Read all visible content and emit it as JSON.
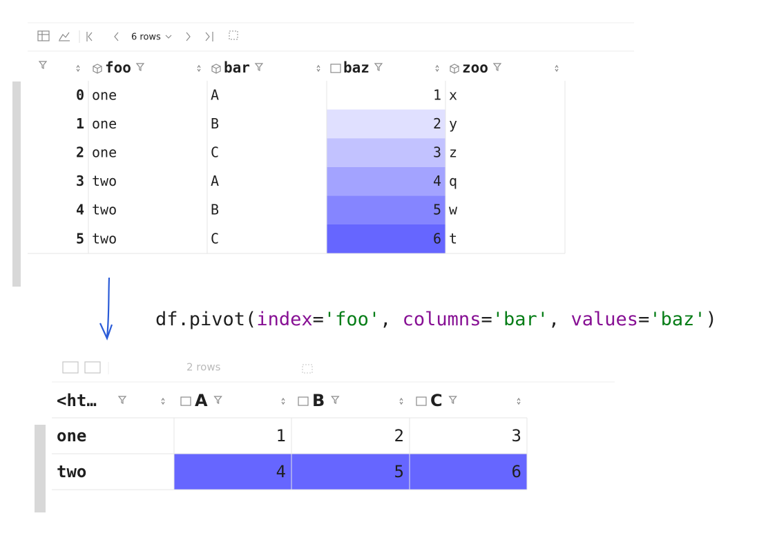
{
  "top_table": {
    "toolbar": {
      "rows_label": "6 rows"
    },
    "columns": [
      "foo",
      "bar",
      "baz",
      "zoo"
    ],
    "rows": [
      {
        "index": 0,
        "cells": [
          "one",
          "A",
          1,
          "x"
        ]
      },
      {
        "index": 1,
        "cells": [
          "one",
          "B",
          2,
          "y"
        ]
      },
      {
        "index": 2,
        "cells": [
          "one",
          "C",
          3,
          "z"
        ]
      },
      {
        "index": 3,
        "cells": [
          "two",
          "A",
          4,
          "q"
        ]
      },
      {
        "index": 4,
        "cells": [
          "two",
          "B",
          5,
          "w"
        ]
      },
      {
        "index": 5,
        "cells": [
          "two",
          "C",
          6,
          "t"
        ]
      }
    ]
  },
  "code": [
    "df.pivot(",
    "index",
    "=",
    "'foo'",
    ", ",
    "columns",
    "=",
    "'bar'",
    ", ",
    "values",
    "=",
    "'baz'",
    ")"
  ],
  "bottom_table": {
    "toolbar": {
      "rows_label": "2 rows"
    },
    "index_header": "<ht…",
    "columns": [
      "A",
      "B",
      "C"
    ],
    "rows": [
      {
        "index": "one",
        "cells": [
          1,
          2,
          3
        ]
      },
      {
        "index": "two",
        "cells": [
          4,
          5,
          6
        ]
      }
    ]
  }
}
